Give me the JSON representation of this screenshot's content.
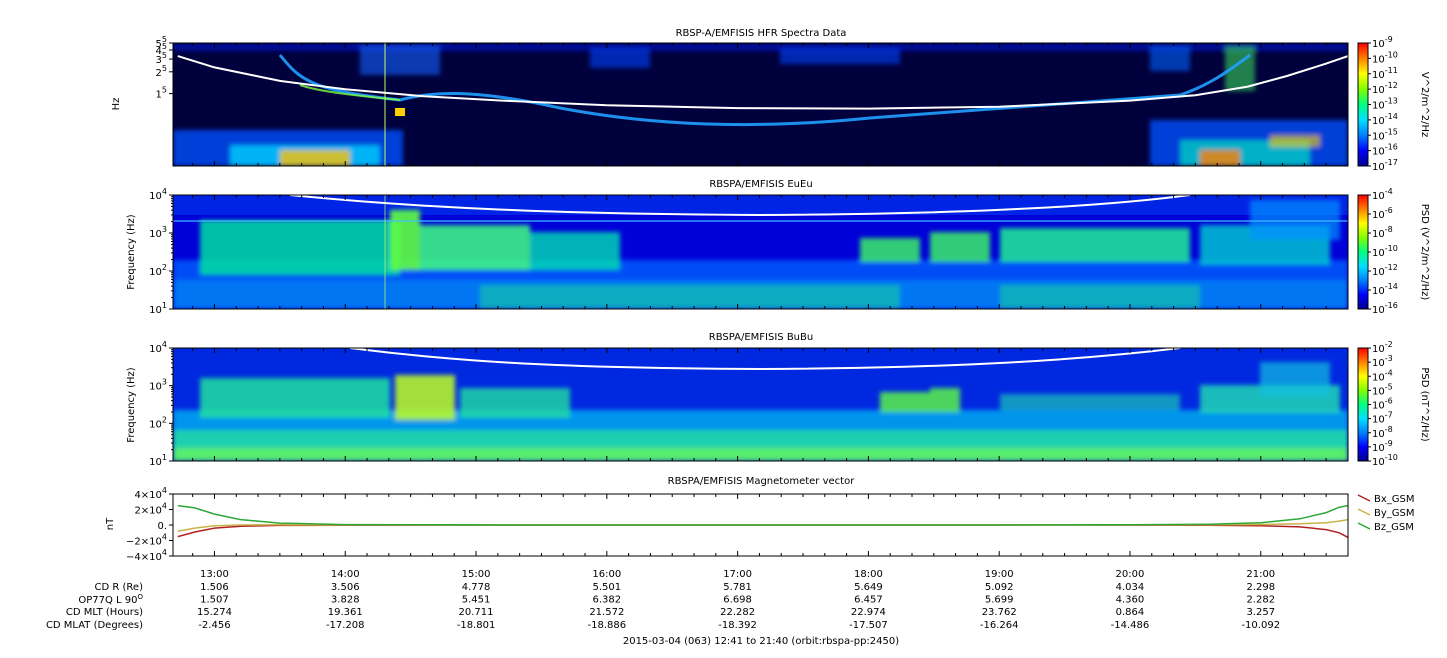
{
  "time_axis": {
    "start_hours": 12.683,
    "end_hours": 21.667,
    "tick_hours": [
      13,
      14,
      15,
      16,
      17,
      18,
      19,
      20,
      21
    ],
    "tick_labels": [
      "13:00",
      "14:00",
      "15:00",
      "16:00",
      "17:00",
      "18:00",
      "19:00",
      "20:00",
      "21:00"
    ]
  },
  "panels": [
    {
      "id": "hfr",
      "title": "RBSP-A/EMFISIS  HFR Spectra Data",
      "ylabel": "Hz",
      "ylog": true,
      "ylim": [
        10000,
        500000
      ],
      "yticks": [
        {
          "m": "1",
          "e": "5",
          "v": 100000
        },
        {
          "m": "2",
          "e": "5",
          "v": 200000
        },
        {
          "m": "3",
          "e": "5",
          "v": 300000
        },
        {
          "m": "4",
          "e": "5",
          "v": 400000
        },
        {
          "m": "5",
          "e": "5",
          "v": 500000
        }
      ],
      "colorbar": {
        "label": "V^2/m^2/Hz",
        "ticks": [
          {
            "m": "10",
            "e": "-9"
          },
          {
            "m": "10",
            "e": "-10"
          },
          {
            "m": "10",
            "e": "-11"
          },
          {
            "m": "10",
            "e": "-12"
          },
          {
            "m": "10",
            "e": "-13"
          },
          {
            "m": "10",
            "e": "-14"
          },
          {
            "m": "10",
            "e": "-15"
          },
          {
            "m": "10",
            "e": "-16"
          },
          {
            "m": "10",
            "e": "-17"
          }
        ]
      }
    },
    {
      "id": "eueu",
      "title": "RBSPA/EMFISIS  EuEu",
      "ylabel": "Frequency (Hz)",
      "ylog": true,
      "ylim": [
        10,
        10000
      ],
      "yticks": [
        {
          "m": "10",
          "e": "4",
          "v": 10000
        },
        {
          "m": "10",
          "e": "3",
          "v": 1000
        },
        {
          "m": "10",
          "e": "2",
          "v": 100
        },
        {
          "m": "10",
          "e": "1",
          "v": 10
        }
      ],
      "colorbar": {
        "label": "PSD (V^2/m^2/Hz)",
        "ticks": [
          {
            "m": "10",
            "e": "-4"
          },
          {
            "m": "10",
            "e": "-6"
          },
          {
            "m": "10",
            "e": "-8"
          },
          {
            "m": "10",
            "e": "-10"
          },
          {
            "m": "10",
            "e": "-12"
          },
          {
            "m": "10",
            "e": "-14"
          },
          {
            "m": "10",
            "e": "-16"
          }
        ]
      }
    },
    {
      "id": "bubu",
      "title": "RBSPA/EMFISIS  BuBu",
      "ylabel": "Frequency (Hz)",
      "ylog": true,
      "ylim": [
        10,
        10000
      ],
      "yticks": [
        {
          "m": "10",
          "e": "4",
          "v": 10000
        },
        {
          "m": "10",
          "e": "3",
          "v": 1000
        },
        {
          "m": "10",
          "e": "2",
          "v": 100
        },
        {
          "m": "10",
          "e": "1",
          "v": 10
        }
      ],
      "colorbar": {
        "label": "PSD (nT^2/Hz)",
        "ticks": [
          {
            "m": "10",
            "e": "-2"
          },
          {
            "m": "10",
            "e": "-3"
          },
          {
            "m": "10",
            "e": "-4"
          },
          {
            "m": "10",
            "e": "-5"
          },
          {
            "m": "10",
            "e": "-6"
          },
          {
            "m": "10",
            "e": "-7"
          },
          {
            "m": "10",
            "e": "-8"
          },
          {
            "m": "10",
            "e": "-9"
          },
          {
            "m": "10",
            "e": "-10"
          }
        ]
      }
    }
  ],
  "colors": {
    "spectrogram_background": "#00003c",
    "colormap": [
      "#000090",
      "#0000ff",
      "#0080ff",
      "#00e0ff",
      "#00ff80",
      "#80ff00",
      "#ffff00",
      "#ff8000",
      "#ff0000"
    ],
    "fce_line": "#ffffff",
    "bx": "#b22222",
    "by": "#c8b24a",
    "bz": "#2ea836"
  },
  "chart_data": [
    {
      "type": "heatmap",
      "panel": "hfr",
      "title": "RBSP-A/EMFISIS  HFR Spectra Data",
      "ylabel": "Hz",
      "yscale": "log",
      "ylim": [
        10000,
        500000
      ],
      "colorbar_label": "V^2/m^2/Hz",
      "colorbar_range": [
        "10^-17",
        "10^-9"
      ],
      "note_line_hz": {
        "x": [
          12.72,
          13.0,
          13.5,
          14.0,
          14.6,
          15.2,
          16.0,
          17.0,
          18.0,
          19.0,
          20.0,
          20.5,
          20.9,
          21.2,
          21.5,
          21.667
        ],
        "y": [
          330000,
          230000,
          150000,
          115000,
          92000,
          80000,
          69000,
          63000,
          62000,
          66000,
          80000,
          95000,
          125000,
          175000,
          260000,
          330000
        ]
      }
    },
    {
      "type": "heatmap",
      "panel": "eueu",
      "title": "RBSPA/EMFISIS  EuEu",
      "ylabel": "Frequency (Hz)",
      "yscale": "log",
      "ylim": [
        10,
        10000
      ],
      "colorbar_label": "PSD (V^2/m^2/Hz)",
      "colorbar_range": [
        "10^-16",
        "10^-4"
      ]
    },
    {
      "type": "heatmap",
      "panel": "bubu",
      "title": "RBSPA/EMFISIS  BuBu",
      "ylabel": "Frequency (Hz)",
      "yscale": "log",
      "ylim": [
        10,
        10000
      ],
      "colorbar_label": "PSD (nT^2/Hz)",
      "colorbar_range": [
        "10^-10",
        "10^-2"
      ]
    },
    {
      "type": "line",
      "panel": "mag",
      "title": "RBSPA/EMFISIS  Magnetometer vector",
      "ylabel": "nT",
      "ylim": [
        -40000,
        40000
      ],
      "yticks": [
        {
          "m": "4×10",
          "e": "4",
          "v": 40000
        },
        {
          "m": "2×10",
          "e": "4",
          "v": 20000
        },
        {
          "m": "0.",
          "e": "",
          "v": 0
        },
        {
          "m": "−2×10",
          "e": "4",
          "v": -20000
        },
        {
          "m": "−4×10",
          "e": "4",
          "v": -40000
        }
      ],
      "x": [
        12.72,
        12.85,
        13.0,
        13.2,
        13.5,
        14.0,
        15.0,
        16.0,
        17.0,
        18.0,
        19.0,
        20.0,
        20.6,
        21.0,
        21.3,
        21.5,
        21.6,
        21.667
      ],
      "series": [
        {
          "name": "Bx_GSM",
          "values": [
            -15000,
            -9000,
            -4000,
            -1500,
            -500,
            -200,
            -100,
            0,
            0,
            0,
            0,
            -100,
            -400,
            -1000,
            -2500,
            -6000,
            -10000,
            -16000
          ]
        },
        {
          "name": "By_GSM",
          "values": [
            -8000,
            -4000,
            -1000,
            0,
            200,
            0,
            0,
            0,
            0,
            0,
            0,
            0,
            200,
            600,
            1500,
            3000,
            5000,
            7000
          ]
        },
        {
          "name": "Bz_GSM",
          "values": [
            25000,
            22000,
            14000,
            7000,
            2500,
            500,
            100,
            0,
            0,
            0,
            0,
            200,
            1000,
            3000,
            8000,
            16000,
            23000,
            25000
          ]
        }
      ]
    }
  ],
  "mag_panel": {
    "title": "RBSPA/EMFISIS  Magnetometer vector",
    "ylabel": "nT"
  },
  "ephemeris": {
    "labels": [
      "CD R (Re)",
      "OP77Q L 90",
      "CD MLT (Hours)",
      "CD MLAT (Degrees)"
    ],
    "l_superscript": "O",
    "rows": [
      [
        "1.506",
        "3.506",
        "4.778",
        "5.501",
        "5.781",
        "5.649",
        "5.092",
        "4.034",
        "2.298"
      ],
      [
        "1.507",
        "3.828",
        "5.451",
        "6.382",
        "6.698",
        "6.457",
        "5.699",
        "4.360",
        "2.282"
      ],
      [
        "15.274",
        "19.361",
        "20.711",
        "21.572",
        "22.282",
        "22.974",
        "23.762",
        "0.864",
        "3.257"
      ],
      [
        "-2.456",
        "-17.208",
        "-18.801",
        "-18.886",
        "-18.392",
        "-17.507",
        "-16.264",
        "-14.486",
        "-10.092"
      ]
    ]
  },
  "footer": "2015-03-04 (063) 12:41 to 21:40 (orbit:rbspa-pp:2450)"
}
